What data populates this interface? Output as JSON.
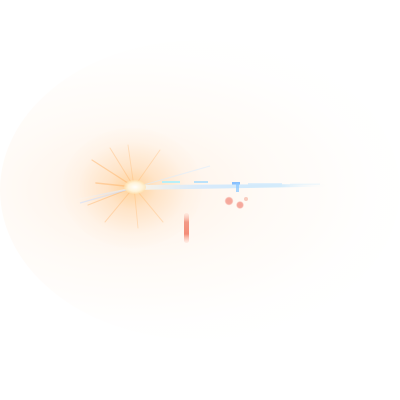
{
  "scene": {
    "subject": "lens-flare-burst",
    "colors": {
      "background": "#ffffff",
      "core": "#fff8ec",
      "warm_glow": "#ffc88c",
      "orange_ray": "#ffb060",
      "blue_streak": "#8ec8ff",
      "cyan_streak": "#a8f0ff",
      "red_orb": "#f07a6a",
      "peach_orb": "#f4a08a"
    }
  }
}
